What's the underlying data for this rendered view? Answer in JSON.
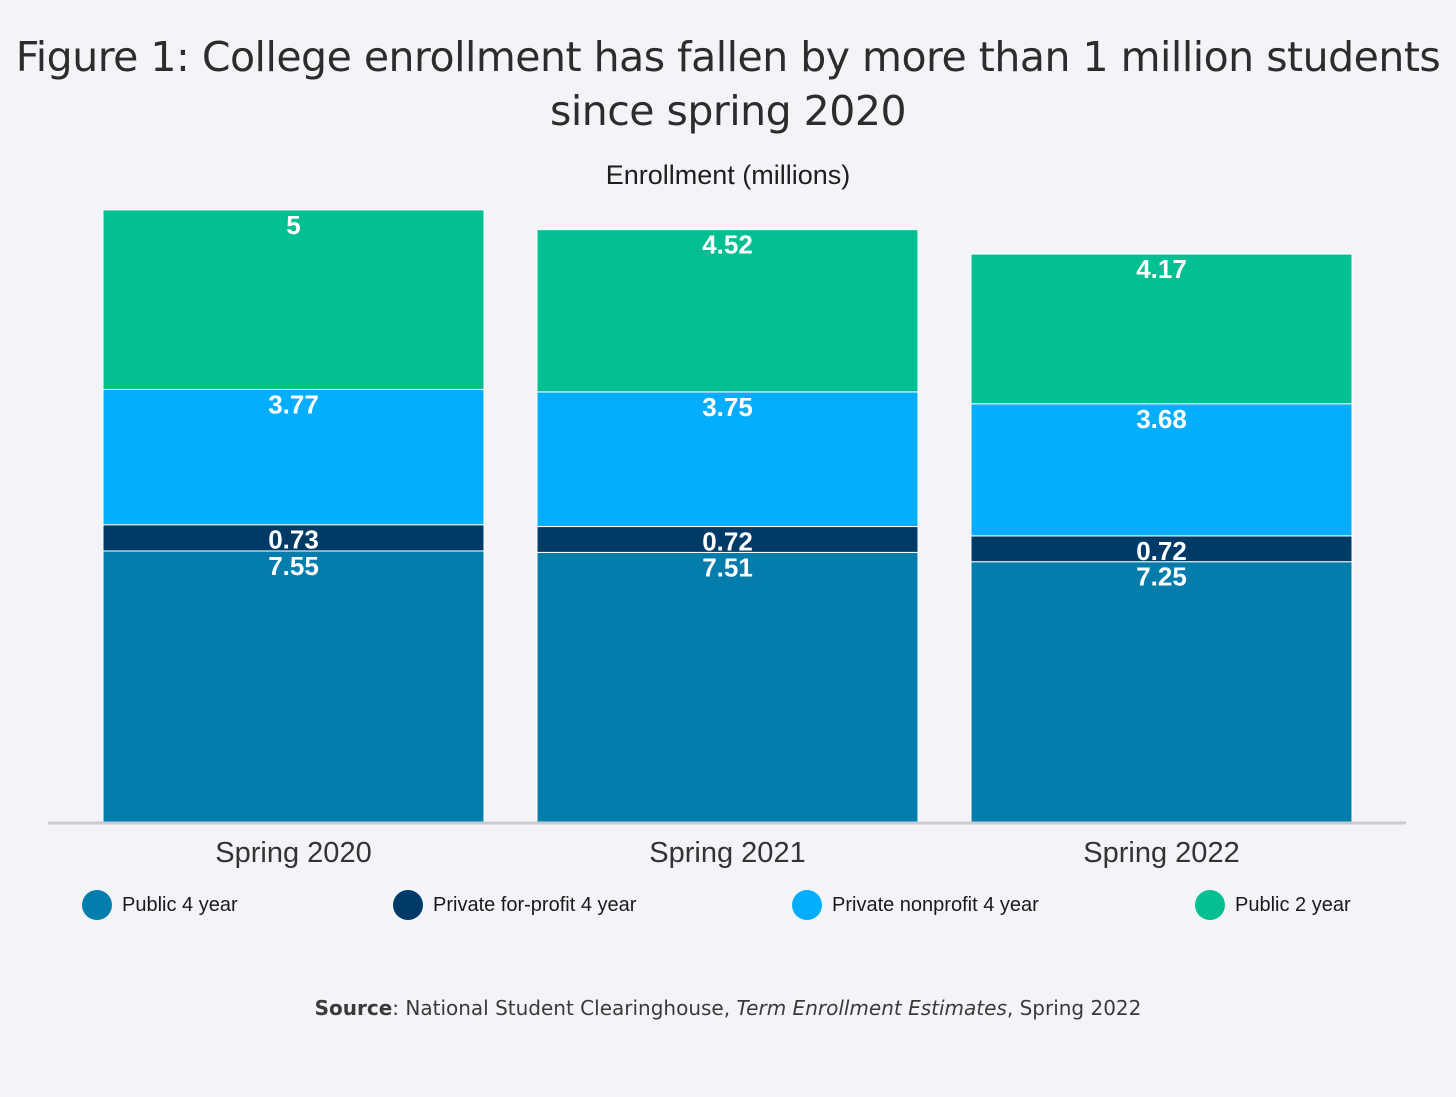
{
  "chart_data": {
    "type": "bar",
    "stacked": true,
    "title": "Figure 1: College enrollment has fallen by more than 1 million students since spring 2020",
    "subtitle": "Enrollment (millions)",
    "categories": [
      "Spring 2020",
      "Spring 2021",
      "Spring 2022"
    ],
    "series": [
      {
        "name": "Public 4 year",
        "color": "#047dad",
        "values": [
          7.55,
          7.51,
          7.25
        ],
        "labels": [
          "7.55",
          "7.51",
          "7.25"
        ]
      },
      {
        "name": "Private for-profit 4 year",
        "color": "#003a66",
        "values": [
          0.73,
          0.72,
          0.72
        ],
        "labels": [
          "0.73",
          "0.72",
          "0.72"
        ]
      },
      {
        "name": "Private nonprofit 4 year",
        "color": "#05aefc",
        "values": [
          3.77,
          3.75,
          3.68
        ],
        "labels": [
          "3.77",
          "3.75",
          "3.68"
        ]
      },
      {
        "name": "Public 2 year",
        "color": "#03bf92",
        "values": [
          5,
          4.52,
          4.17
        ],
        "labels": [
          "5",
          "4.52",
          "4.17"
        ]
      }
    ],
    "xlabel": "",
    "ylabel": "Enrollment (millions)",
    "legend_position": "bottom"
  },
  "source": {
    "label": "Source",
    "sep": ": ",
    "text": "National Student Clearinghouse, ",
    "italic": "Term Enrollment Estimates",
    "tail": ", Spring 2022"
  }
}
